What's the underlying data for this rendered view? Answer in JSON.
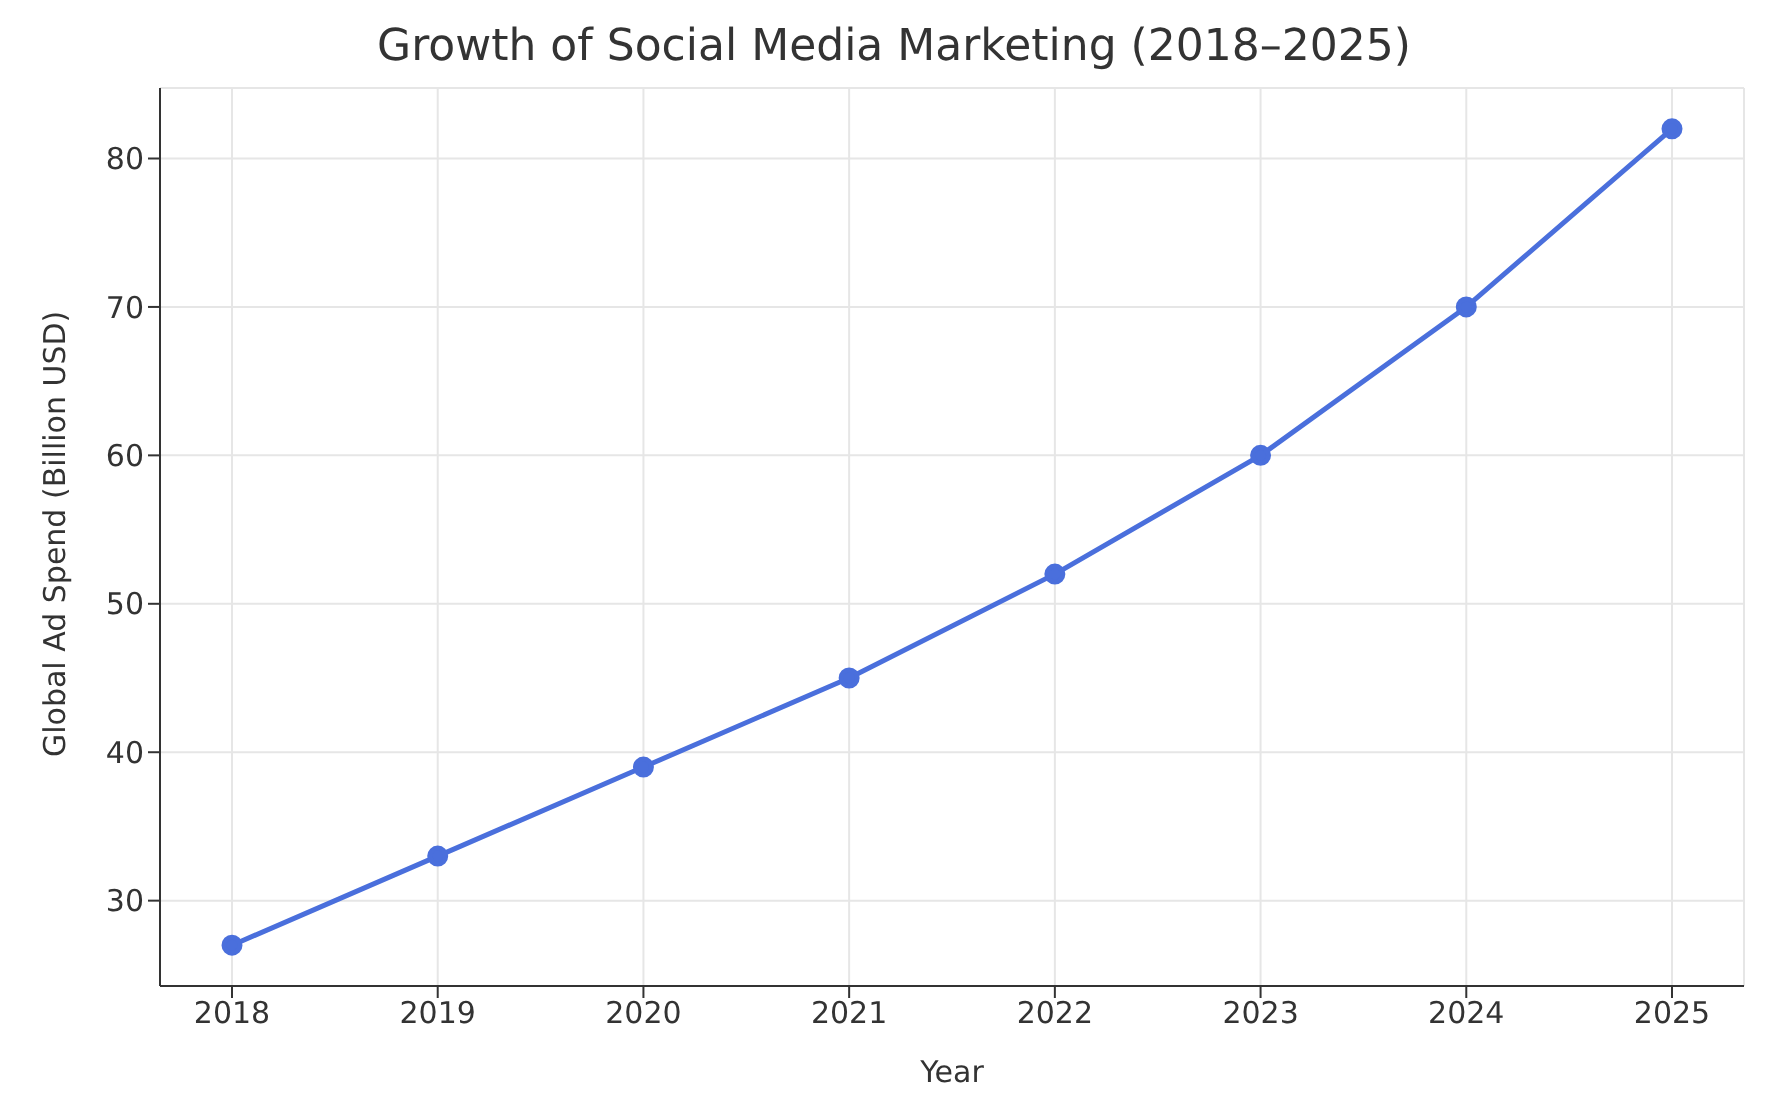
{
  "chart_data": {
    "type": "line",
    "title": "Growth of Social Media Marketing (2018–2025)",
    "xlabel": "Year",
    "ylabel": "Global Ad Spend (Billion USD)",
    "x": [
      2018,
      2019,
      2020,
      2021,
      2022,
      2023,
      2024,
      2025
    ],
    "series": [
      {
        "color": "#4a6fdc",
        "values": [
          27,
          33,
          39,
          45,
          52,
          60,
          70,
          82
        ]
      }
    ],
    "xlim": [
      2017.65,
      2025.35
    ],
    "xticks": [
      2018,
      2019,
      2020,
      2021,
      2022,
      2023,
      2024,
      2025
    ],
    "ylim": [
      24.25,
      84.75
    ],
    "yticks": [
      30,
      40,
      50,
      60,
      70,
      80
    ],
    "grid": true,
    "marker": "circle",
    "line_style": "solid",
    "legend": false
  }
}
